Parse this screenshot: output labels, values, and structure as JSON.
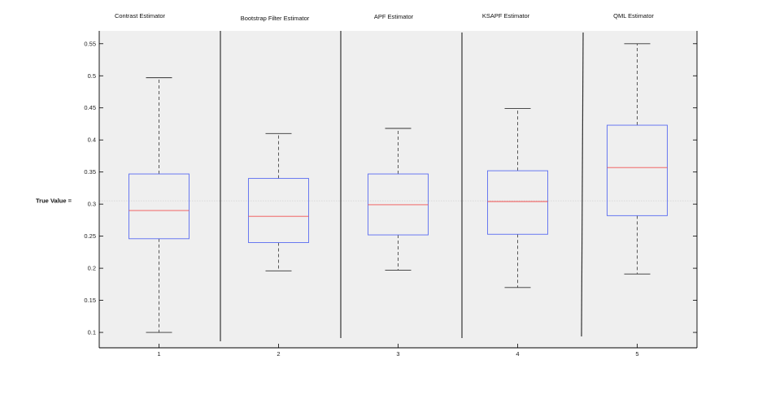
{
  "chart_data": {
    "type": "box",
    "categories": [
      "1",
      "2",
      "3",
      "4",
      "5"
    ],
    "panel_titles": [
      "Contrast Estimator",
      "Bootstrap Filter Estimator",
      "APF Estimator",
      "KSAPF Estimator",
      "QML Estimator"
    ],
    "boxes": [
      {
        "category": "1",
        "min": 0.1,
        "q1": 0.246,
        "median": 0.29,
        "q3": 0.347,
        "max": 0.497
      },
      {
        "category": "2",
        "min": 0.196,
        "q1": 0.24,
        "median": 0.281,
        "q3": 0.34,
        "max": 0.41
      },
      {
        "category": "3",
        "min": 0.197,
        "q1": 0.252,
        "median": 0.299,
        "q3": 0.347,
        "max": 0.418
      },
      {
        "category": "4",
        "min": 0.17,
        "q1": 0.253,
        "median": 0.304,
        "q3": 0.352,
        "max": 0.449
      },
      {
        "category": "5",
        "min": 0.191,
        "q1": 0.282,
        "median": 0.357,
        "q3": 0.423,
        "max": 0.55
      }
    ],
    "reference_line": {
      "label": "True Value =",
      "value": 0.305
    },
    "y_ticks": [
      "0.1",
      "0.15",
      "0.2",
      "0.25",
      "0.3",
      "0.35",
      "0.4",
      "0.45",
      "0.5",
      "0.55"
    ],
    "ylim": [
      0.076,
      0.57
    ],
    "grid": false,
    "colors": {
      "box": "#5a6cf0",
      "median": "#f05050",
      "whisker": "#333333",
      "axes_bg": "#efefef",
      "reference": "#d6d6d6"
    }
  }
}
